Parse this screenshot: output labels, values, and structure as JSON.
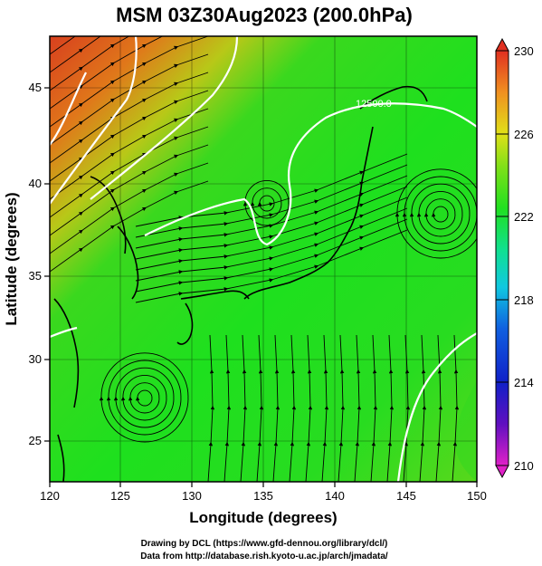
{
  "title": "MSM 03Z30Aug2023 (200.0hPa)",
  "x_axis": {
    "label": "Longitude (degrees)",
    "ticks": [
      "120",
      "125",
      "130",
      "135",
      "140",
      "145",
      "150"
    ],
    "range": [
      120,
      150
    ]
  },
  "y_axis": {
    "label": "Latitude  (degrees)",
    "ticks": [
      "25",
      "30",
      "35",
      "40",
      "45"
    ],
    "range": [
      22.4,
      47.6
    ]
  },
  "colorbar": {
    "ticks": [
      "230",
      "226",
      "222",
      "218",
      "214",
      "210"
    ],
    "range": [
      210,
      230
    ]
  },
  "contour_label": "12500.0",
  "credits": {
    "line1": "Drawing by DCL (https://www.gfd-dennou.org/library/dcl/)",
    "line2": "Data from http://database.rish.kyoto-u.ac.jp/arch/jmadata/"
  },
  "colors": {
    "warm": "#e8501e",
    "mid": "#22d81e",
    "cool": "#0000c0",
    "contour": "#ffffff",
    "streamline": "#000000"
  }
}
